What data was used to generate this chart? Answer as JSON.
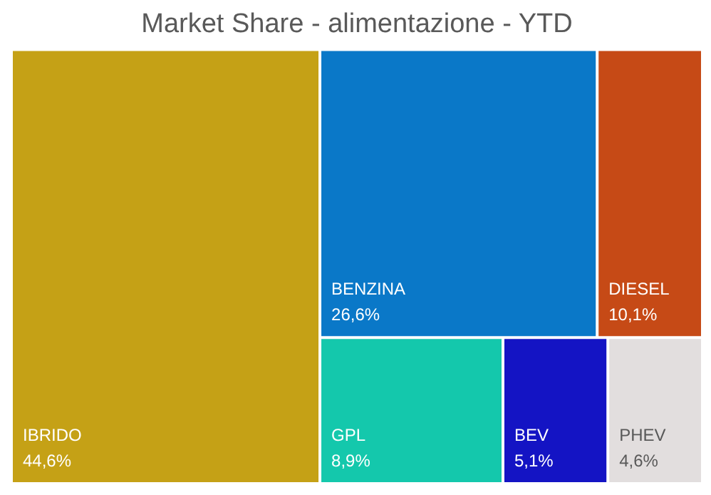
{
  "chart_data": {
    "type": "other",
    "title": "Market Share - alimentazione - YTD",
    "categories": [
      "IBRIDO",
      "BENZINA",
      "DIESEL",
      "GPL",
      "BEV",
      "PHEV"
    ],
    "values": [
      44.6,
      26.6,
      10.1,
      8.9,
      5.1,
      4.6
    ],
    "value_labels": [
      "44,6%",
      "26,6%",
      "10,1%",
      "8,9%",
      "5,1%",
      "4,6%"
    ],
    "colors": [
      "#c5a116",
      "#0a78c8",
      "#c64a16",
      "#14c8ac",
      "#1414c4",
      "#e2dede"
    ]
  }
}
